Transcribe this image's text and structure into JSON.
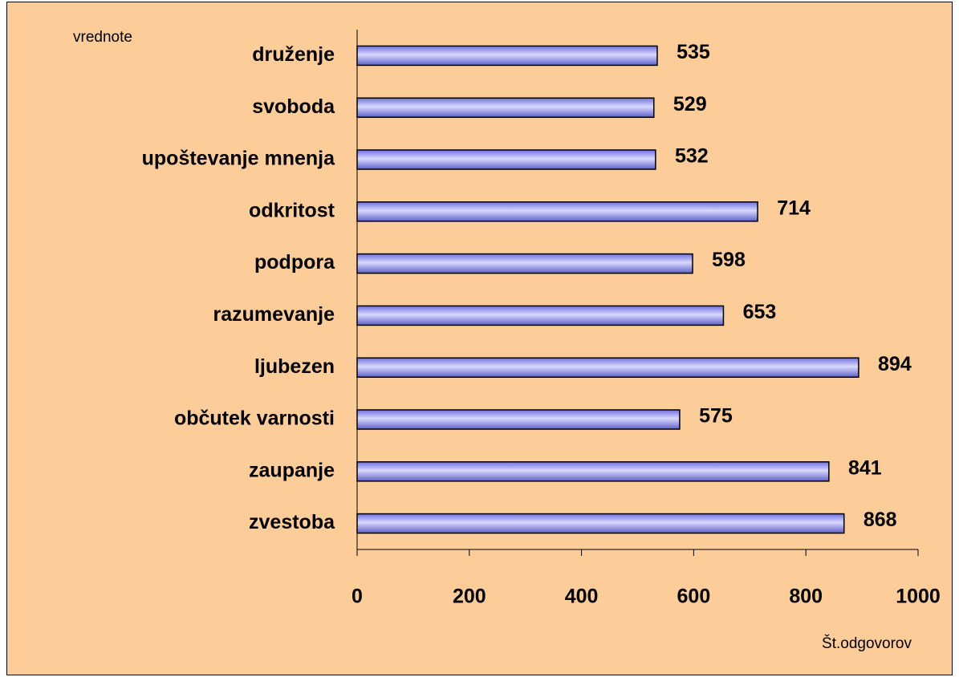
{
  "chart_data": {
    "type": "hbar",
    "y_label": "vrednote",
    "x_label": "Št.odgovorov",
    "categories": [
      "druženje",
      "svoboda",
      "upoštevanje mnenja",
      "odkritost",
      "podpora",
      "razumevanje",
      "ljubezen",
      "občutek varnosti",
      "zaupanje",
      "zvestoba"
    ],
    "values": [
      535,
      529,
      532,
      714,
      598,
      653,
      894,
      575,
      841,
      868
    ],
    "color": "#9999ff",
    "xlim": [
      0,
      1000
    ],
    "xticks": [
      0,
      200,
      400,
      600,
      800,
      1000
    ],
    "background": "#fccc99"
  }
}
